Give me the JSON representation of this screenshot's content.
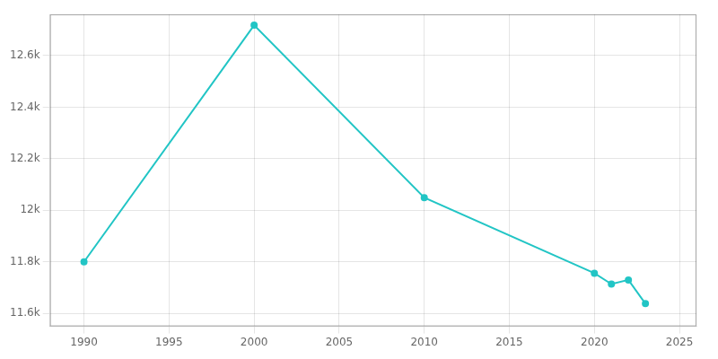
{
  "chart_data": {
    "type": "line",
    "x": [
      1990,
      2000,
      2010,
      2020,
      2021,
      2022,
      2023
    ],
    "values": [
      11800,
      12718,
      12049,
      11756,
      11714,
      11730,
      11638
    ],
    "color": "#22c5c5",
    "marker": "circle",
    "xlim": [
      1988,
      2026
    ],
    "ylim": [
      11550,
      12760
    ],
    "xticks": [
      1990,
      1995,
      2000,
      2005,
      2010,
      2015,
      2020,
      2025
    ],
    "yticks": [
      {
        "value": 11600,
        "label": "11.6k"
      },
      {
        "value": 11800,
        "label": "11.8k"
      },
      {
        "value": 12000,
        "label": "12k"
      },
      {
        "value": 12200,
        "label": "12.2k"
      },
      {
        "value": 12400,
        "label": "12.4k"
      },
      {
        "value": 12600,
        "label": "12.6k"
      }
    ],
    "grid": true
  }
}
